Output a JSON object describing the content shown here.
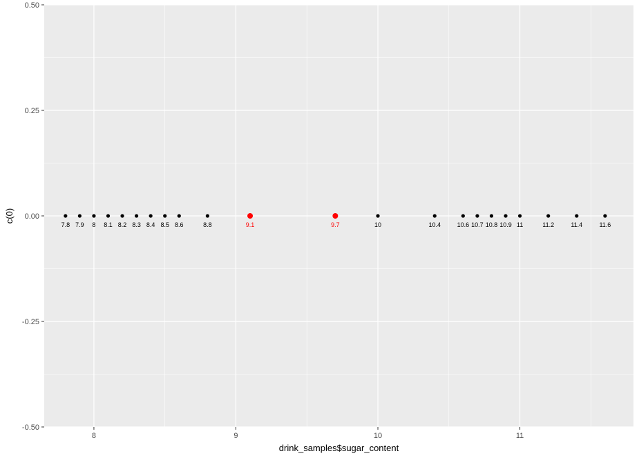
{
  "chart_data": {
    "type": "scatter",
    "xlabel": "drink_samples$sugar_content",
    "ylabel": "c(0)",
    "xlim": [
      7.65,
      11.8
    ],
    "ylim": [
      -0.5,
      0.5
    ],
    "x_ticks": [
      8,
      9,
      10,
      11
    ],
    "x_tick_labels": [
      "8",
      "9",
      "10",
      "11"
    ],
    "y_ticks": [
      -0.5,
      -0.25,
      0,
      0.25,
      0.5
    ],
    "y_tick_labels": [
      "-0.50",
      "-0.25",
      "0.00",
      "0.25",
      "0.50"
    ],
    "grid": true,
    "background": "#ebebeb",
    "grid_color": "#ffffff",
    "highlight_color": "#ff0000",
    "point_color": "#000000",
    "points": [
      {
        "x": 7.8,
        "y": 0,
        "label": "7.8",
        "highlight": false
      },
      {
        "x": 7.9,
        "y": 0,
        "label": "7.9",
        "highlight": false
      },
      {
        "x": 8.0,
        "y": 0,
        "label": "8",
        "highlight": false
      },
      {
        "x": 8.1,
        "y": 0,
        "label": "8.1",
        "highlight": false
      },
      {
        "x": 8.2,
        "y": 0,
        "label": "8.2",
        "highlight": false
      },
      {
        "x": 8.3,
        "y": 0,
        "label": "8.3",
        "highlight": false
      },
      {
        "x": 8.4,
        "y": 0,
        "label": "8.4",
        "highlight": false
      },
      {
        "x": 8.5,
        "y": 0,
        "label": "8.5",
        "highlight": false
      },
      {
        "x": 8.6,
        "y": 0,
        "label": "8.6",
        "highlight": false
      },
      {
        "x": 8.8,
        "y": 0,
        "label": "8.8",
        "highlight": false
      },
      {
        "x": 9.1,
        "y": 0,
        "label": "9.1",
        "highlight": true
      },
      {
        "x": 9.7,
        "y": 0,
        "label": "9.7",
        "highlight": true
      },
      {
        "x": 10.0,
        "y": 0,
        "label": "10",
        "highlight": false
      },
      {
        "x": 10.4,
        "y": 0,
        "label": "10.4",
        "highlight": false
      },
      {
        "x": 10.6,
        "y": 0,
        "label": "10.6",
        "highlight": false
      },
      {
        "x": 10.7,
        "y": 0,
        "label": "10.7",
        "highlight": false
      },
      {
        "x": 10.8,
        "y": 0,
        "label": "10.8",
        "highlight": false
      },
      {
        "x": 10.9,
        "y": 0,
        "label": "10.9",
        "highlight": false
      },
      {
        "x": 11.0,
        "y": 0,
        "label": "11",
        "highlight": false
      },
      {
        "x": 11.2,
        "y": 0,
        "label": "11.2",
        "highlight": false
      },
      {
        "x": 11.4,
        "y": 0,
        "label": "11.4",
        "highlight": false
      },
      {
        "x": 11.6,
        "y": 0,
        "label": "11.6",
        "highlight": false
      }
    ]
  }
}
